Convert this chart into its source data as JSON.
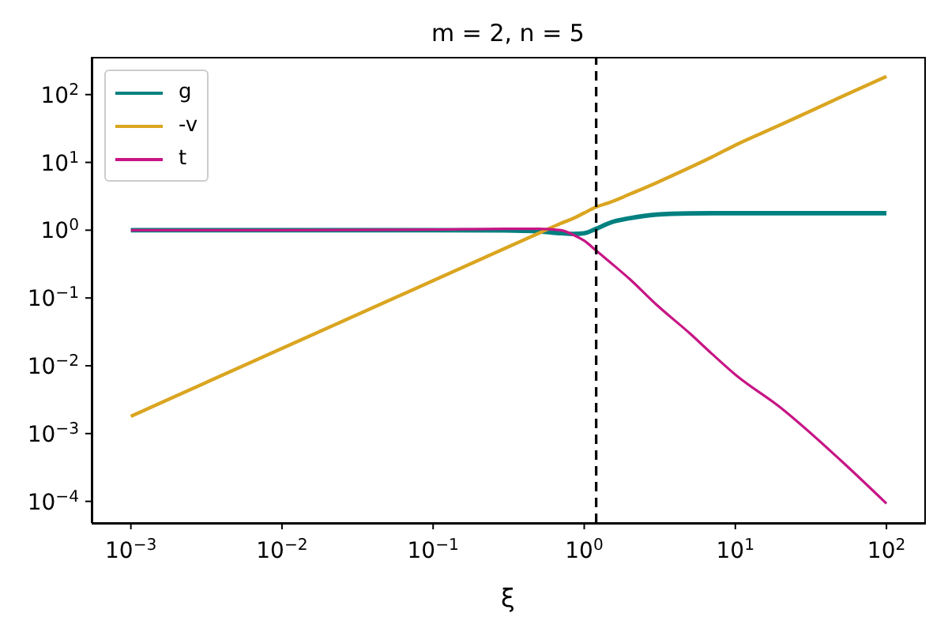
{
  "chart_data": {
    "type": "line",
    "title": "m = 2, n = 5",
    "xlabel": "ξ",
    "log": "xy",
    "legend": "top left",
    "x": [
      0.001,
      0.01,
      0.1,
      0.3,
      0.5,
      0.7,
      0.85,
      1.0,
      1.2,
      1.5,
      2,
      3,
      5,
      7,
      10,
      20,
      50,
      100
    ],
    "series": [
      {
        "name": "g",
        "color": "#008080",
        "values": [
          1,
          1,
          1,
          0.99,
          0.96,
          0.9,
          0.88,
          0.9,
          1.05,
          1.3,
          1.5,
          1.7,
          1.77,
          1.78,
          1.78,
          1.78,
          1.78,
          1.78
        ]
      },
      {
        "name": "-v",
        "color": "#daa520",
        "values": [
          0.0018,
          0.018,
          0.18,
          0.54,
          0.9,
          1.26,
          1.5,
          1.8,
          2.2,
          2.6,
          3.4,
          5.0,
          8.4,
          12,
          18,
          36,
          92,
          185
        ]
      },
      {
        "name": "t",
        "color": "#c71585",
        "values": [
          1,
          1,
          1.02,
          1.05,
          1.05,
          1.0,
          0.85,
          0.7,
          0.5,
          0.33,
          0.19,
          0.08,
          0.03,
          0.015,
          0.0074,
          0.0024,
          0.0004,
          9.3e-05
        ]
      }
    ],
    "xlim": [
      0.00055,
      178
    ],
    "ylim": [
      4.8e-05,
      360
    ],
    "xticks": [
      {
        "value": 0.001,
        "label": "10$^{−3}$"
      },
      {
        "value": 0.01,
        "label": "10$^{−2}$"
      },
      {
        "value": 0.1,
        "label": "10$^{−1}$"
      },
      {
        "value": 1,
        "label": "10$^{0}$"
      },
      {
        "value": 10,
        "label": "10$^{1}$"
      },
      {
        "value": 100,
        "label": "10$^{2}$"
      }
    ],
    "yticks": [
      {
        "value": 0.0001,
        "label": "10$^{−4}$"
      },
      {
        "value": 0.001,
        "label": "10$^{−3}$"
      },
      {
        "value": 0.01,
        "label": "10$^{−2}$"
      },
      {
        "value": 0.1,
        "label": "10$^{−1}$"
      },
      {
        "value": 1,
        "label": "10$^{0}$"
      },
      {
        "value": 10,
        "label": "10$^{1}$"
      },
      {
        "value": 100,
        "label": "10$^{2}$"
      }
    ],
    "ref_lines": [
      {
        "axis": "x",
        "value": 1.2,
        "color": "#000000",
        "line_style": "dashed"
      }
    ]
  }
}
